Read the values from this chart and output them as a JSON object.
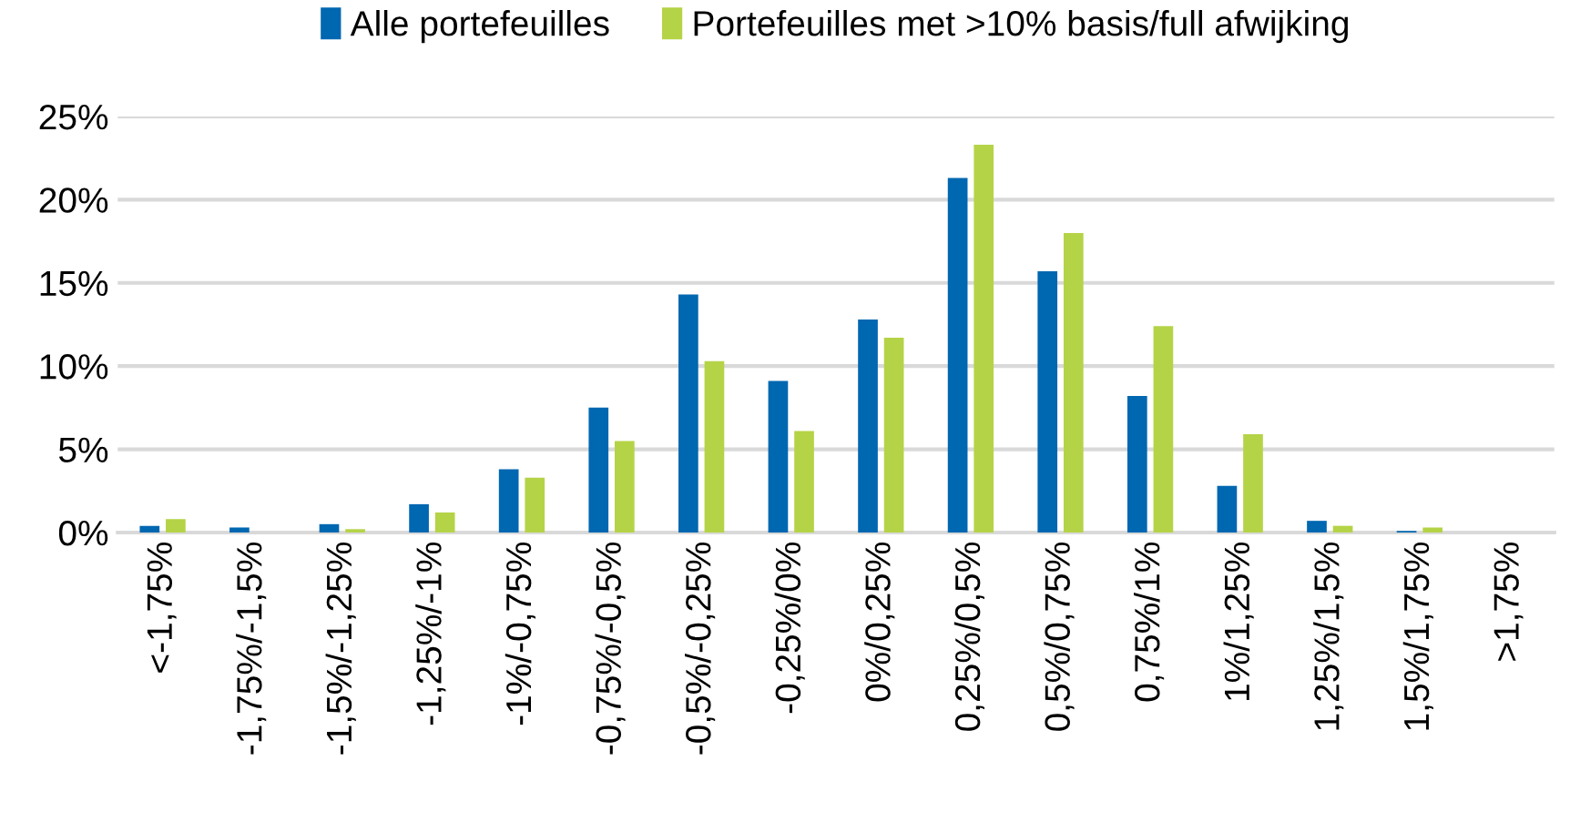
{
  "chart_data": {
    "type": "bar",
    "categories": [
      "<-1,75%",
      "-1,75%/-1,5%",
      "-1,5%/-1,25%",
      "-1,25%/-1%",
      "-1%/-0,75%",
      "-0,75%/-0,5%",
      "-0,5%/-0,25%",
      "-0,25%/0%",
      "0%/0,25%",
      "0,25%/0,5%",
      "0,5%/0,75%",
      "0,75%/1%",
      "1%/1,25%",
      "1,25%/1,5%",
      "1,5%/1,75%",
      ">1,75%"
    ],
    "series": [
      {
        "name": "Alle portefeuilles",
        "color": "#0067b1",
        "values": [
          0.4,
          0.3,
          0.5,
          1.7,
          3.8,
          7.5,
          14.3,
          9.1,
          12.8,
          21.3,
          15.7,
          8.2,
          2.8,
          0.7,
          0.1,
          null
        ]
      },
      {
        "name": "Portefeuilles met >10% basis/full afwijking",
        "color": "#b5d347",
        "values": [
          0.8,
          null,
          0.2,
          1.2,
          3.3,
          5.5,
          10.3,
          6.1,
          11.7,
          23.3,
          18.0,
          12.4,
          5.9,
          0.4,
          0.3,
          null
        ]
      }
    ],
    "ylim": [
      0,
      25
    ],
    "yticks": [
      {
        "value": 0,
        "label": "0%"
      },
      {
        "value": 5,
        "label": "5%"
      },
      {
        "value": 10,
        "label": "10%"
      },
      {
        "value": 15,
        "label": "15%"
      },
      {
        "value": 20,
        "label": "20%"
      },
      {
        "value": 25,
        "label": "25%"
      }
    ],
    "grid": "y",
    "legend": "top"
  }
}
